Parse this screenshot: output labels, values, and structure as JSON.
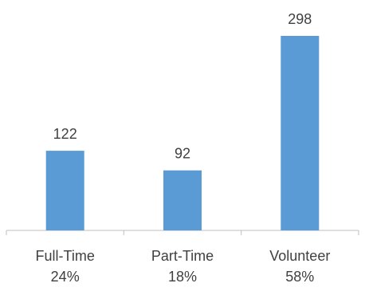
{
  "chart_data": {
    "type": "bar",
    "title": "",
    "xlabel": "",
    "ylabel": "",
    "categories": [
      "Full-Time",
      "Part-Time",
      "Volunteer"
    ],
    "category_percentages": [
      "24%",
      "18%",
      "58%"
    ],
    "values": [
      122,
      92,
      298
    ],
    "ylim": [
      0,
      298
    ],
    "grid": false,
    "legend": "none",
    "bar_color": "#5b9bd5",
    "axis_color": "#bfbfbf",
    "text_color": "#404040"
  }
}
